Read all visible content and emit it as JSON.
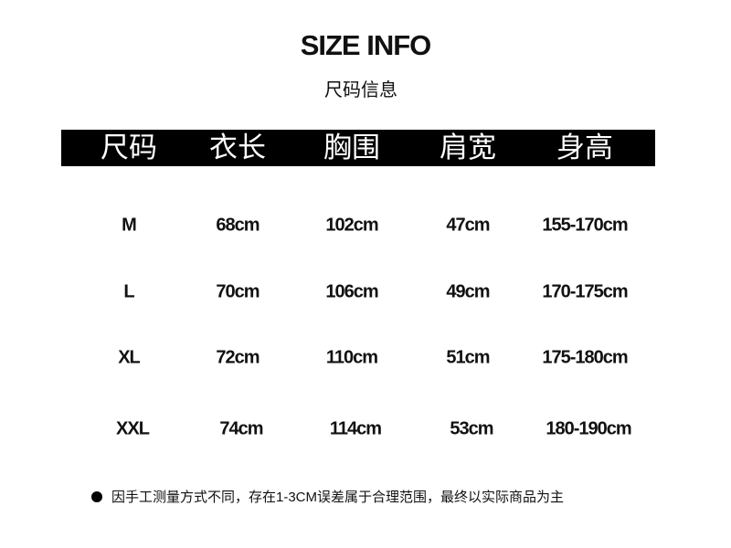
{
  "title": "SIZE INFO",
  "subtitle": "尺码信息",
  "headers": [
    "尺码",
    "衣长",
    "胸围",
    "肩宽",
    "身高"
  ],
  "rows": [
    [
      "M",
      "68cm",
      "102cm",
      "47cm",
      "155-170cm"
    ],
    [
      "L",
      "70cm",
      "106cm",
      "49cm",
      "170-175cm"
    ],
    [
      "XL",
      "72cm",
      "110cm",
      "51cm",
      "175-180cm"
    ],
    [
      "XXL",
      "74cm",
      "114cm",
      "53cm",
      "180-190cm"
    ]
  ],
  "note": "因手工测量方式不同，存在1-3CM误差属于合理范围，最终以实际商品为主",
  "note_icon": "bullet-dot-icon",
  "colors": {
    "header_bg": "#000000",
    "header_text": "#ffffff"
  }
}
